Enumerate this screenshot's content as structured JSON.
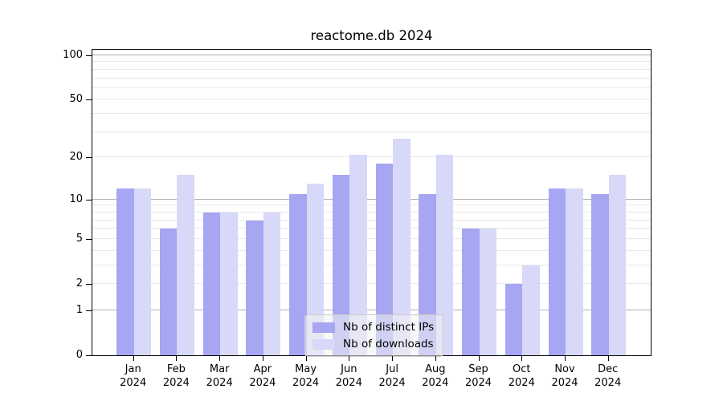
{
  "chart_data": {
    "type": "bar",
    "title": "reactome.db 2024",
    "categories": [
      "Jan",
      "Feb",
      "Mar",
      "Apr",
      "May",
      "Jun",
      "Jul",
      "Aug",
      "Sep",
      "Oct",
      "Nov",
      "Dec"
    ],
    "x_year_label": "2024",
    "series": [
      {
        "name": "Nb of distinct IPs",
        "color": "#a6a6f2",
        "values": [
          12,
          6,
          8,
          7,
          11,
          15,
          18,
          11,
          6,
          2,
          12,
          11
        ]
      },
      {
        "name": "Nb of downloads",
        "color": "#d8d8f8",
        "values": [
          12,
          15,
          8,
          8,
          13,
          21,
          27,
          21,
          6,
          3,
          12,
          15
        ]
      }
    ],
    "yscale": "log1p",
    "ylim": [
      0,
      113
    ],
    "ytick_values": [
      0,
      1,
      2,
      5,
      10,
      20,
      50,
      100
    ],
    "major_grid_values": [
      1,
      10,
      100
    ],
    "minor_grid_values": [
      2,
      3,
      4,
      5,
      6,
      7,
      8,
      9,
      20,
      30,
      40,
      50,
      60,
      70,
      80,
      90
    ],
    "grid": "on",
    "legend_position": "lower center",
    "colors": {
      "major_grid": "#b0b0b0",
      "minor_grid": "#e9e9e9",
      "axis": "#000000",
      "series_dark": "#a6a6f2",
      "series_light": "#d8d8f8"
    }
  }
}
